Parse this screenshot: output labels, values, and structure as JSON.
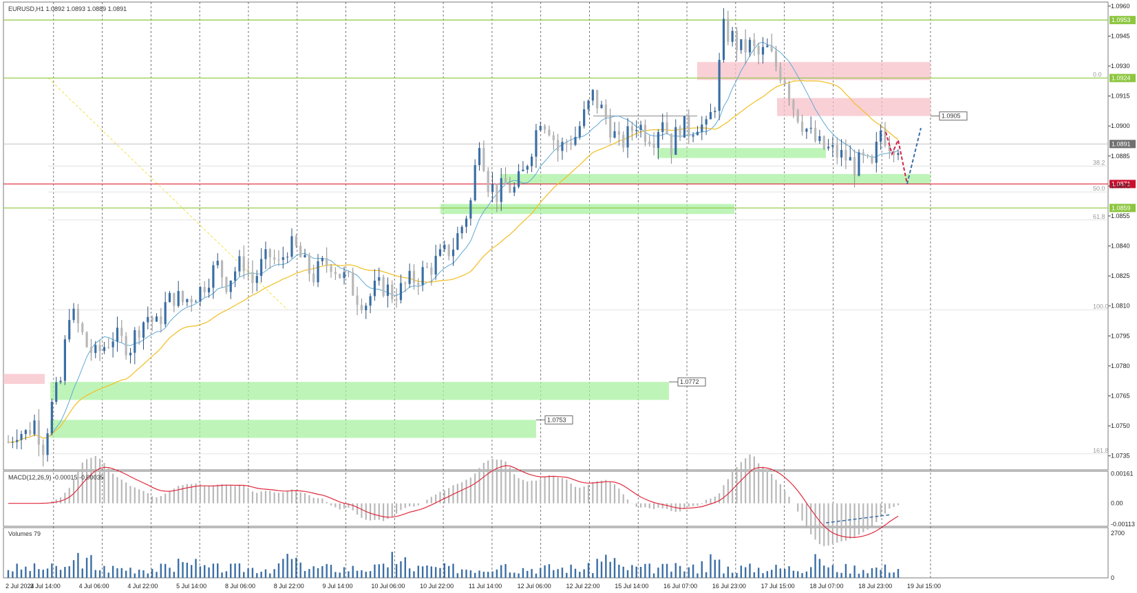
{
  "window": {
    "symbol_info": "EURUSD,H1  1.0892 1.0893 1.0889 1.0891"
  },
  "chart_data": {
    "type": "candlestick",
    "symbol": "EURUSD",
    "timeframe": "H1",
    "ohlc_current": {
      "open": 1.0892,
      "high": 1.0893,
      "low": 1.0889,
      "close": 1.0891
    },
    "y_range": [
      1.0728,
      1.0962
    ],
    "price_ticks": [
      "1.0960",
      "1.0945",
      "1.0930",
      "1.0915",
      "1.0900",
      "1.0885",
      "1.0870",
      "1.0855",
      "1.0840",
      "1.0825",
      "1.0810",
      "1.0795",
      "1.0780",
      "1.0765",
      "1.0750",
      "1.0735"
    ],
    "time_ticks": [
      "2 Jul 2024",
      "3 Jul 14:00",
      "4 Jul 06:00",
      "4 Jul 22:00",
      "5 Jul 14:00",
      "8 Jul 06:00",
      "8 Jul 22:00",
      "9 Jul 14:00",
      "10 Jul 06:00",
      "10 Jul 22:00",
      "11 Jul 14:00",
      "12 Jul 06:00",
      "12 Jul 22:00",
      "15 Jul 14:00",
      "16 Jul 07:00",
      "16 Jul 23:00",
      "17 Jul 15:00",
      "18 Jul 07:00",
      "18 Jul 23:00",
      "19 Jul 15:00"
    ],
    "price_path": [
      1.0742,
      1.0748,
      1.0746,
      1.0752,
      1.074,
      1.076,
      1.0772,
      1.0808,
      1.08,
      1.079,
      1.0785,
      1.079,
      1.0795,
      1.0792,
      1.079,
      1.08,
      1.0805,
      1.08,
      1.081,
      1.0815,
      1.0812,
      1.0815,
      1.0818,
      1.0825,
      1.083,
      1.0822,
      1.0828,
      1.0832,
      1.0822,
      1.083,
      1.0835,
      1.083,
      1.084,
      1.0838,
      1.083,
      1.0825,
      1.083,
      1.0832,
      1.0826,
      1.0822,
      1.0815,
      1.0812,
      1.0818,
      1.082,
      1.0816,
      1.0818,
      1.0822,
      1.0825,
      1.0828,
      1.0832,
      1.0836,
      1.084,
      1.085,
      1.0862,
      1.0895,
      1.0872,
      1.0866,
      1.087,
      1.0868,
      1.0876,
      1.089,
      1.0905,
      1.09,
      1.0888,
      1.0892,
      1.0895,
      1.0905,
      1.0915,
      1.0908,
      1.09,
      1.089,
      1.0895,
      1.0902,
      1.0897,
      1.0895,
      1.0905,
      1.089,
      1.09,
      1.0898,
      1.0902,
      1.0898,
      1.0912,
      1.0948,
      1.0944,
      1.0938,
      1.094,
      1.0935,
      1.0938,
      1.093,
      1.0924,
      1.091,
      1.0902,
      1.0895,
      1.089,
      1.0888,
      1.0886,
      1.0884,
      1.088,
      1.0882,
      1.0878,
      1.0898,
      1.0892,
      1.0891
    ],
    "ma_fast_color": "#5fa8d3",
    "ma_slow_color": "#f2c12e",
    "bull_color": "#3a6ea5",
    "bear_color": "#b8b8b8",
    "fib_labels": [
      "0.0",
      "38.2",
      "50.0",
      "61.8",
      "100.0",
      "161.8"
    ],
    "horizontal_levels": [
      {
        "price": "1.0953",
        "color": "#8dc63f",
        "label_bg": "#8dc63f"
      },
      {
        "price": "1.0924",
        "color": "#8dc63f",
        "label_bg": "#8dc63f"
      },
      {
        "price": "1.0891",
        "color": "#c8c8c8",
        "label_bg": "#707070"
      },
      {
        "price": "1.0871",
        "color": "#e0263a",
        "label_bg": "#c8102e"
      },
      {
        "price": "1.0859",
        "color": "#8dc63f",
        "label_bg": "#8dc63f"
      }
    ],
    "zone_callouts": [
      "1.0905",
      "1.0772",
      "1.0753"
    ],
    "macd": {
      "label": "MACD(12,26,9) -0.00015 -0.00035",
      "ticks": [
        "0.00161",
        "0.00",
        "-0.00113"
      ],
      "signal_color": "#e0263a"
    },
    "volumes": {
      "label": "Volumes 79",
      "ticks": [
        "2700",
        "0"
      ],
      "bar_color": "#3a6ea5"
    }
  }
}
